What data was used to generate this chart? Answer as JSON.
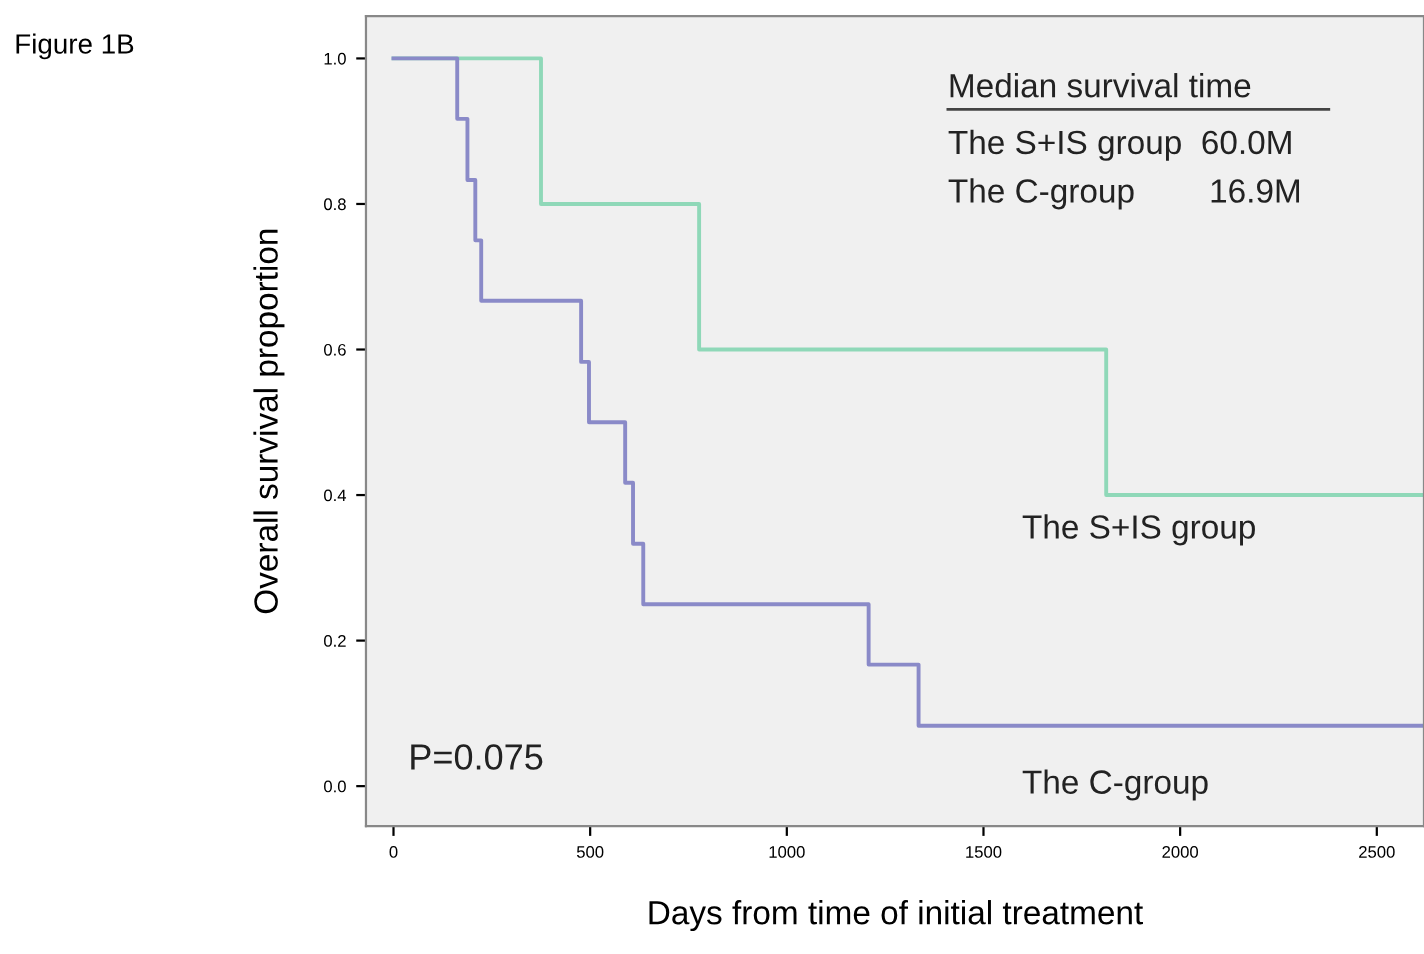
{
  "chart_data": {
    "type": "step",
    "title": "Figure 1B",
    "xlabel": "Days from time of initial treatment",
    "ylabel": "Overall survival proportion",
    "xlim": [
      -70,
      2620
    ],
    "ylim": [
      -0.055,
      1.058
    ],
    "xticks": [
      0,
      500,
      1000,
      1500,
      2000,
      2500
    ],
    "yticks": [
      {
        "value": 0,
        "label": "0.0"
      },
      {
        "value": 0.2,
        "label": "0.2"
      },
      {
        "value": 0.4,
        "label": "0.4"
      },
      {
        "value": 0.6,
        "label": "0.6"
      },
      {
        "value": 0.8,
        "label": "0.8"
      },
      {
        "value": 1.0,
        "label": "1.0"
      }
    ],
    "grid": false,
    "legend": false,
    "line_style": "solid",
    "marker": "none",
    "series": [
      {
        "name": "The S+IS group",
        "color": "#8fd8b8",
        "x": [
          0,
          375,
          777,
          1812,
          2620
        ],
        "values": [
          1.0,
          0.8,
          0.6,
          0.4,
          0.4
        ]
      },
      {
        "name": "The C-group",
        "color": "#8a8ac8",
        "x": [
          0,
          162,
          188,
          208,
          223,
          477,
          497,
          589,
          609,
          635,
          1208,
          1335,
          2620
        ],
        "values": [
          1.0,
          0.917,
          0.833,
          0.75,
          0.667,
          0.583,
          0.5,
          0.417,
          0.333,
          0.25,
          0.167,
          0.083,
          0.083
        ]
      }
    ],
    "annotations": [
      "Median survival time",
      "The S+IS group  60.0M",
      "The C-group        16.9M",
      "P=0.075"
    ]
  }
}
